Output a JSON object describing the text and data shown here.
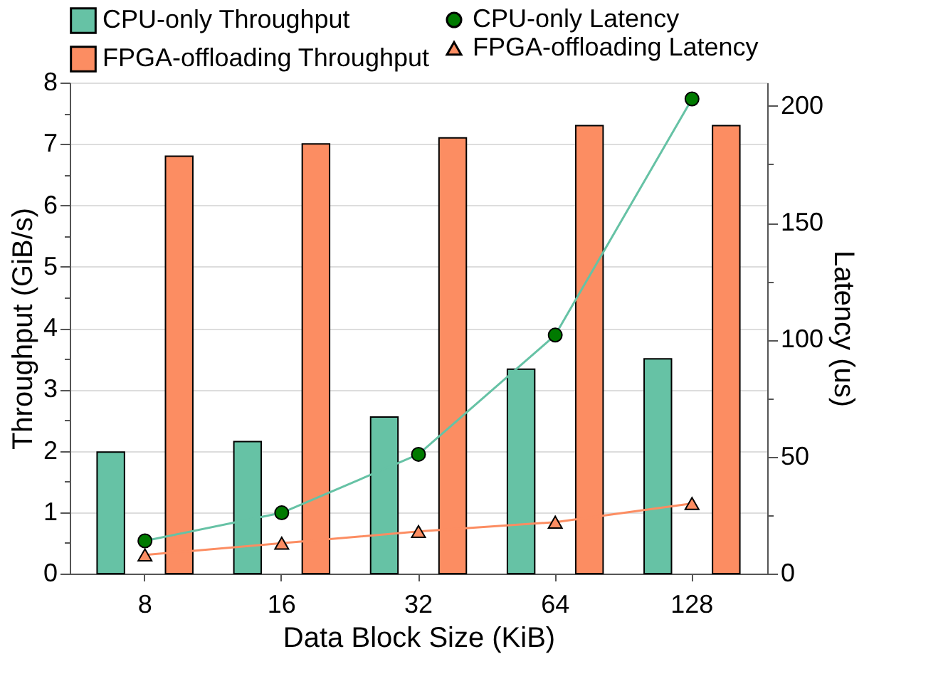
{
  "chart_data": {
    "type": "bar",
    "xlabel": "Data Block Size (KiB)",
    "ylabel": "Throughput (GiB/s)",
    "y2label": "Latency (us)",
    "categories": [
      "8",
      "16",
      "32",
      "64",
      "128"
    ],
    "series": [
      {
        "name": "CPU-only Throughput",
        "type": "bar",
        "color": "#66c2a5",
        "values": [
          1.98,
          2.15,
          2.55,
          3.33,
          3.5
        ]
      },
      {
        "name": "FPGA-offloading Throughput",
        "type": "bar",
        "color": "#fc8d62",
        "values": [
          6.8,
          7.0,
          7.1,
          7.3,
          7.3
        ]
      },
      {
        "name": "CPU-only Latency",
        "type": "line",
        "axis": "y2",
        "marker": "circle",
        "color": "#66c2a5",
        "values": [
          14,
          26,
          51,
          102,
          203
        ]
      },
      {
        "name": "FPGA-offloading Latency",
        "type": "line",
        "axis": "y2",
        "marker": "triangle",
        "color": "#fc8d62",
        "values": [
          8,
          13,
          18,
          22,
          30
        ]
      }
    ],
    "ylim": [
      0,
      8
    ],
    "yticks": [
      0,
      {
        "value": 0.5,
        "label": null
      },
      1,
      {
        "value": 1.5,
        "label": null
      },
      2,
      {
        "value": 2.5,
        "label": null
      },
      3,
      {
        "value": 3.5,
        "label": null
      },
      4,
      {
        "value": 4.5,
        "label": null
      },
      5,
      {
        "value": 5.5,
        "label": null
      },
      6,
      {
        "value": 6.5,
        "label": null
      },
      7,
      {
        "value": 7.5,
        "label": null
      },
      8
    ],
    "y2lim": [
      0,
      210
    ],
    "y2ticks": [
      0,
      {
        "value": 25,
        "label": null
      },
      50,
      {
        "value": 75,
        "label": null
      },
      100,
      {
        "value": 125,
        "label": null
      },
      150,
      {
        "value": 175,
        "label": null
      },
      200
    ],
    "grid": "y",
    "legend": "top"
  }
}
